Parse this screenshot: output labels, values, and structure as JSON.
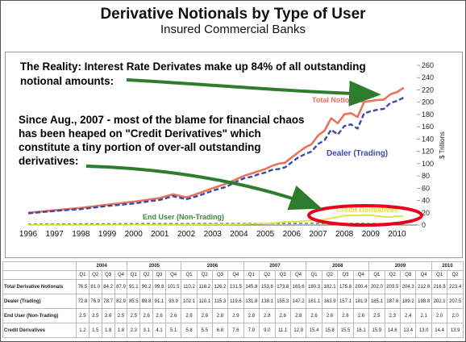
{
  "header": {
    "title": "Derivative Notionals by Type of User",
    "subtitle": "Insured Commercial Banks"
  },
  "annotations": {
    "reality_line1": "The Reality: Interest Rate Derivates make up 84% of all outstanding",
    "reality_line2": "notional amounts:",
    "blame_line1": "Since Aug., 2007 - most of the blame for financial chaos",
    "blame_line2": "has been heaped on \"Credit Derivatives\" which",
    "blame_line3": "constitute a tiny portion of over-all outstanding",
    "blame_line4": "derivatives:"
  },
  "colors": {
    "total": "#e8735a",
    "dealer": "#3c4aa8",
    "end_user": "#3a8a3a",
    "credit": "#e0e040",
    "highlight": "#e8001c",
    "arrow": "#2e7d2e"
  },
  "chart_data": {
    "type": "line",
    "ylabel": "$ Trillions",
    "ylim": [
      0,
      260
    ],
    "yticks": [
      0,
      20,
      40,
      60,
      80,
      100,
      120,
      140,
      160,
      180,
      200,
      220,
      240,
      260
    ],
    "xlim": [
      1996,
      2010.75
    ],
    "xticks": [
      "1996",
      "1997",
      "1998",
      "1999",
      "2000",
      "2001",
      "2002",
      "2003",
      "2004",
      "2005",
      "2006",
      "2007",
      "2008",
      "2009",
      "2010"
    ],
    "grid": false,
    "x": [
      1996,
      1997,
      1998,
      1999,
      2000,
      2001,
      2001.5,
      2002,
      2002.5,
      2003,
      2003.5,
      2004,
      2004.25,
      2004.5,
      2004.75,
      2005,
      2005.25,
      2005.5,
      2005.75,
      2006,
      2006.25,
      2006.5,
      2006.75,
      2007,
      2007.25,
      2007.5,
      2007.75,
      2008,
      2008.25,
      2008.5,
      2008.75,
      2009,
      2009.25,
      2009.5,
      2009.75,
      2010,
      2010.25
    ],
    "series": [
      {
        "name": "Total Notionals",
        "values": [
          20,
          24,
          28,
          33,
          38,
          44,
          50,
          45,
          52,
          60,
          67,
          76.5,
          81,
          84.2,
          87.9,
          91.1,
          96.2,
          99.8,
          101.5,
          110.2,
          118.2,
          126.2,
          131.5,
          145.8,
          153.8,
          173.8,
          165.6,
          180.3,
          182.1,
          175.8,
          200.4,
          202.0,
          203.5,
          204.3,
          212.8,
          216.5,
          223.4
        ]
      },
      {
        "name": "Dealer (Trading)",
        "values": [
          19,
          23,
          26,
          31,
          35,
          41,
          47,
          42,
          48,
          56,
          62,
          72.8,
          76.9,
          78.7,
          82.9,
          85.5,
          89.8,
          91.1,
          93.9,
          102.1,
          110.1,
          115.3,
          119.6,
          131.8,
          138.1,
          155.3,
          147.2,
          161.1,
          163.9,
          157.1,
          181.9,
          185.1,
          187.6,
          189.2,
          198.8,
          202.1,
          207.5
        ]
      },
      {
        "name": "End User (Non-Trading)",
        "values": [
          1.5,
          1.6,
          1.8,
          2.0,
          2.2,
          2.3,
          2.4,
          2.4,
          2.5,
          2.5,
          2.5,
          2.5,
          2.5,
          2.6,
          2.5,
          2.5,
          2.6,
          2.6,
          2.6,
          2.6,
          2.6,
          2.8,
          2.9,
          2.8,
          2.8,
          2.8,
          2.8,
          2.6,
          2.6,
          2.6,
          2.6,
          2.5,
          2.3,
          2.4,
          2.1,
          2.0,
          2.0
        ]
      },
      {
        "name": "Credit Derivatives",
        "values": [
          0.1,
          0.2,
          0.3,
          0.4,
          0.5,
          0.6,
          0.7,
          0.8,
          0.9,
          1.0,
          1.1,
          1.2,
          1.5,
          1.8,
          1.8,
          2.3,
          3.1,
          4.1,
          5.1,
          5.8,
          5.5,
          6.8,
          7.6,
          7.9,
          9.0,
          11.1,
          12.9,
          15.4,
          15.8,
          15.5,
          16.1,
          15.9,
          14.6,
          13.4,
          13.0,
          14.4,
          13.9
        ]
      }
    ],
    "series_labels": {
      "total": "Total Notionals",
      "dealer": "Dealer (Trading)",
      "end_user": "End User (Non-Trading)",
      "credit": "Credit Derivatives"
    }
  },
  "table": {
    "years": [
      "2004",
      "2005",
      "2006",
      "2007",
      "2008",
      "2009",
      "2010"
    ],
    "quarters": [
      "Q1",
      "Q2",
      "Q3",
      "Q4",
      "Q1",
      "Q2",
      "Q3",
      "Q4",
      "Q1",
      "Q2",
      "Q3",
      "Q4",
      "Q1",
      "Q2",
      "Q3",
      "Q4",
      "Q1",
      "Q2",
      "Q3",
      "Q4",
      "Q1",
      "Q2",
      "Q3",
      "Q4",
      "Q1",
      "Q2"
    ],
    "rows": [
      {
        "label": "Total Derivative Notionals",
        "values": [
          "76.5",
          "81.0",
          "84.2",
          "87.9",
          "91.1",
          "96.2",
          "99.8",
          "101.5",
          "110.2",
          "118.2",
          "126.2",
          "131.5",
          "145.8",
          "153.8",
          "173.8",
          "165.6",
          "180.3",
          "182.1",
          "175.8",
          "200.4",
          "202.0",
          "203.5",
          "204.3",
          "212.8",
          "216.5",
          "223.4"
        ]
      },
      {
        "label": "Dealer (Trading)",
        "values": [
          "72.8",
          "76.9",
          "78.7",
          "82.9",
          "85.5",
          "89.8",
          "91.1",
          "93.9",
          "102.1",
          "110.1",
          "115.3",
          "119.6",
          "131.8",
          "138.1",
          "155.3",
          "147.2",
          "161.1",
          "163.9",
          "157.1",
          "181.9",
          "185.1",
          "187.6",
          "189.2",
          "198.8",
          "202.1",
          "207.5"
        ]
      },
      {
        "label": "End User (Non-Trading)",
        "values": [
          "2.5",
          "2.5",
          "2.6",
          "2.5",
          "2.5",
          "2.6",
          "2.6",
          "2.6",
          "2.6",
          "2.6",
          "2.8",
          "2.9",
          "2.8",
          "2.8",
          "2.8",
          "2.8",
          "2.6",
          "2.6",
          "2.6",
          "2.6",
          "2.5",
          "2.3",
          "2.4",
          "2.1",
          "2.0",
          "2.0"
        ]
      },
      {
        "label": "Credit Derivatives",
        "values": [
          "1.2",
          "1.5",
          "1.8",
          "1.8",
          "2.3",
          "3.1",
          "4.1",
          "5.1",
          "5.8",
          "5.5",
          "6.8",
          "7.6",
          "7.9",
          "9.0",
          "11.1",
          "12.9",
          "15.4",
          "15.8",
          "15.5",
          "16.1",
          "15.9",
          "14.6",
          "13.4",
          "13.0",
          "14.4",
          "13.9"
        ]
      }
    ]
  }
}
